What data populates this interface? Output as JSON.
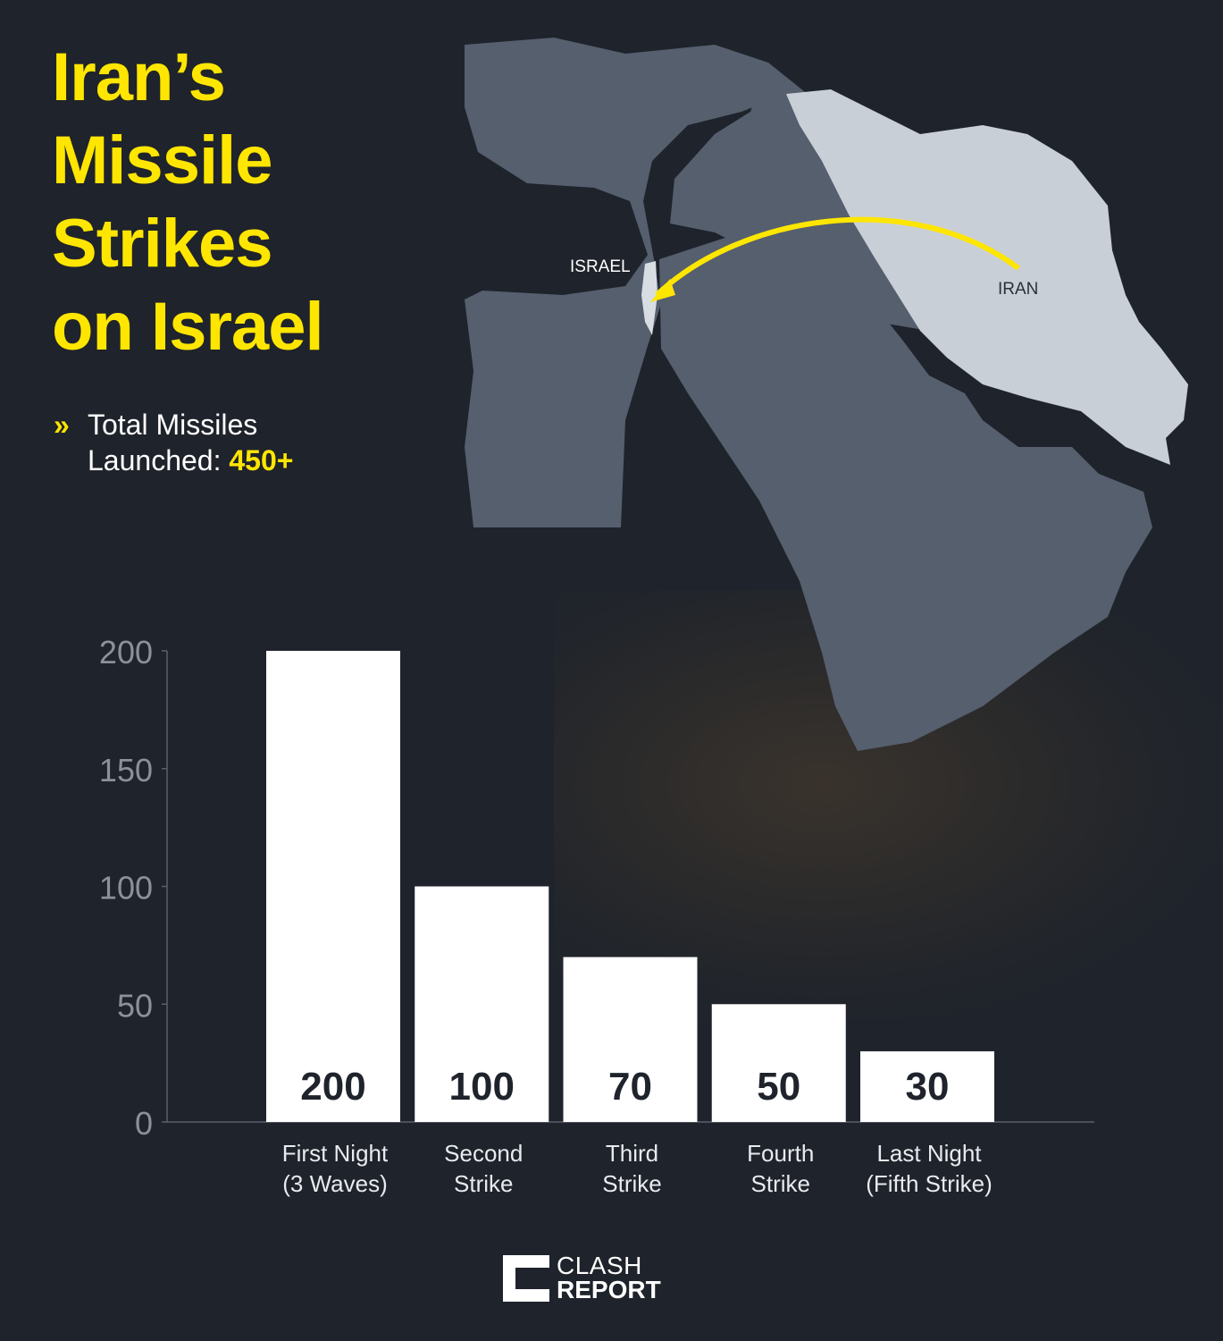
{
  "title_lines": [
    "Iran’s",
    "Missile",
    "Strikes",
    "on Israel"
  ],
  "total": {
    "label_line1": "Total Missiles",
    "label_line2": "Launched:",
    "value": "450+"
  },
  "map": {
    "label_israel": "ISRAEL",
    "label_iran": "IRAN"
  },
  "colors": {
    "accent": "#ffe600",
    "background": "#1f232b",
    "bar": "#ffffff",
    "land": "#555f6e",
    "iran": "#c9cfd6"
  },
  "chart_data": {
    "type": "bar",
    "categories": [
      [
        "First Night",
        "(3 Waves)"
      ],
      [
        "Second",
        "Strike"
      ],
      [
        "Third",
        "Strike"
      ],
      [
        "Fourth",
        "Strike"
      ],
      [
        "Last Night",
        "(Fifth Strike)"
      ]
    ],
    "values": [
      200,
      100,
      70,
      50,
      30
    ],
    "data_labels": [
      "200",
      "100",
      "70",
      "50",
      "30"
    ],
    "yticks": [
      0,
      50,
      100,
      150,
      200
    ],
    "ylim": [
      0,
      200
    ],
    "grid": false,
    "legend": "none"
  },
  "brand": {
    "line1": "CLASH",
    "line2": "REPORT"
  }
}
